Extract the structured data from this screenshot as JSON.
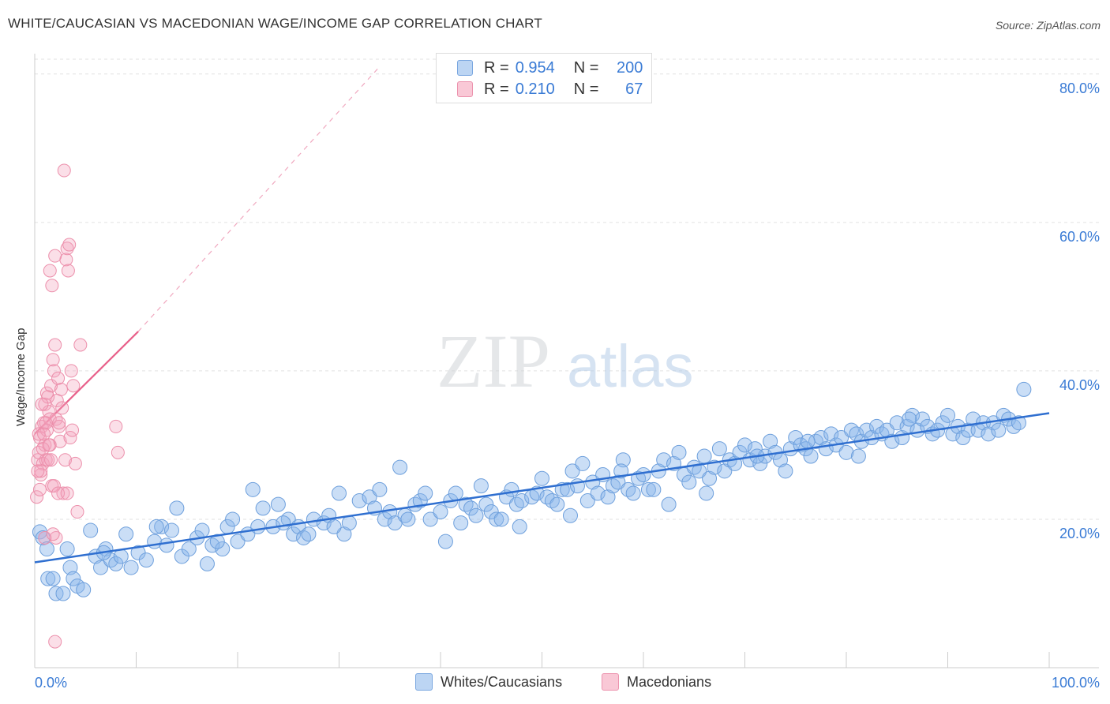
{
  "title": "WHITE/CAUCASIAN VS MACEDONIAN WAGE/INCOME GAP CORRELATION CHART",
  "source": "Source: ZipAtlas.com",
  "watermark": {
    "zip": "ZIP",
    "atlas": "atlas"
  },
  "legend_top": {
    "rows": [
      {
        "r_label": "R =",
        "r_value": "0.954",
        "n_label": "N =",
        "n_value": "200"
      },
      {
        "r_label": "R =",
        "r_value": "0.210",
        "n_label": "N =",
        "n_value": "67"
      }
    ]
  },
  "chart_data": {
    "type": "scatter",
    "title": "WHITE/CAUCASIAN VS MACEDONIAN WAGE/INCOME GAP CORRELATION CHART",
    "xlabel": "",
    "ylabel": "Wage/Income Gap",
    "xlim": [
      0,
      100
    ],
    "ylim": [
      0,
      82
    ],
    "x_tick_labels": [
      "0.0%",
      "100.0%"
    ],
    "y_tick_labels": [
      "20.0%",
      "40.0%",
      "60.0%",
      "80.0%"
    ],
    "y_ticks": [
      20,
      40,
      60,
      80
    ],
    "grid": true,
    "legend_position": "bottom",
    "colors": {
      "blue": "#8ab6ea",
      "blue_line": "#2f6fd0",
      "pink": "#f4a3bd",
      "pink_line": "#e8608a",
      "tick_text": "#3a7bd5"
    },
    "series": [
      {
        "name": "Whites/Caucasians",
        "R": 0.954,
        "N": 200,
        "trend": {
          "x": [
            0,
            100
          ],
          "y": [
            14.2,
            34.3
          ]
        },
        "points": [
          [
            0.5,
            18.3
          ],
          [
            0.8,
            17.5
          ],
          [
            1.3,
            12.0
          ],
          [
            1.2,
            16.0
          ],
          [
            1.8,
            12.0
          ],
          [
            2.1,
            10.0
          ],
          [
            2.8,
            10.0
          ],
          [
            3.5,
            13.5
          ],
          [
            3.8,
            12.0
          ],
          [
            4.2,
            11.0
          ],
          [
            4.8,
            10.5
          ],
          [
            5.5,
            18.5
          ],
          [
            6.0,
            15.0
          ],
          [
            6.5,
            13.5
          ],
          [
            7.0,
            16.0
          ],
          [
            7.5,
            14.5
          ],
          [
            8.0,
            14.0
          ],
          [
            8.5,
            15.0
          ],
          [
            9.0,
            18.0
          ],
          [
            9.5,
            13.5
          ],
          [
            10.2,
            15.5
          ],
          [
            11.0,
            14.5
          ],
          [
            11.8,
            17.0
          ],
          [
            12.5,
            19.0
          ],
          [
            13.0,
            16.5
          ],
          [
            13.5,
            18.5
          ],
          [
            14.0,
            21.5
          ],
          [
            14.5,
            15.0
          ],
          [
            15.2,
            16.0
          ],
          [
            16.0,
            17.5
          ],
          [
            16.5,
            18.5
          ],
          [
            17.0,
            14.0
          ],
          [
            17.5,
            16.5
          ],
          [
            18.5,
            16.0
          ],
          [
            19.0,
            19.0
          ],
          [
            19.5,
            20.0
          ],
          [
            20.0,
            17.0
          ],
          [
            21.0,
            18.0
          ],
          [
            21.5,
            24.0
          ],
          [
            22.0,
            19.0
          ],
          [
            22.5,
            21.5
          ],
          [
            23.5,
            19.0
          ],
          [
            24.0,
            22.0
          ],
          [
            25.0,
            20.0
          ],
          [
            25.5,
            18.0
          ],
          [
            26.0,
            19.0
          ],
          [
            26.5,
            17.5
          ],
          [
            27.0,
            18.0
          ],
          [
            27.5,
            20.0
          ],
          [
            28.5,
            19.5
          ],
          [
            29.0,
            20.5
          ],
          [
            30.0,
            23.5
          ],
          [
            30.5,
            18.0
          ],
          [
            31.0,
            19.5
          ],
          [
            32.0,
            22.5
          ],
          [
            33.0,
            23.0
          ],
          [
            33.5,
            21.5
          ],
          [
            34.0,
            24.0
          ],
          [
            34.5,
            20.0
          ],
          [
            35.0,
            21.0
          ],
          [
            35.5,
            19.5
          ],
          [
            36.0,
            27.0
          ],
          [
            36.5,
            20.5
          ],
          [
            37.5,
            22.0
          ],
          [
            38.0,
            22.5
          ],
          [
            38.5,
            23.5
          ],
          [
            39.0,
            20.0
          ],
          [
            40.0,
            21.0
          ],
          [
            41.0,
            22.5
          ],
          [
            41.5,
            23.5
          ],
          [
            42.0,
            19.5
          ],
          [
            42.5,
            22.0
          ],
          [
            43.0,
            21.5
          ],
          [
            44.0,
            24.5
          ],
          [
            44.5,
            22.0
          ],
          [
            45.0,
            21.0
          ],
          [
            45.5,
            20.0
          ],
          [
            46.0,
            20.0
          ],
          [
            46.5,
            23.0
          ],
          [
            47.0,
            24.0
          ],
          [
            47.5,
            22.0
          ],
          [
            48.0,
            22.5
          ],
          [
            49.0,
            23.0
          ],
          [
            49.5,
            23.5
          ],
          [
            50.0,
            25.5
          ],
          [
            50.5,
            23.0
          ],
          [
            51.0,
            22.5
          ],
          [
            51.5,
            22.0
          ],
          [
            52.0,
            24.0
          ],
          [
            52.5,
            24.0
          ],
          [
            53.0,
            26.5
          ],
          [
            53.5,
            24.5
          ],
          [
            54.0,
            27.5
          ],
          [
            54.5,
            22.5
          ],
          [
            55.0,
            25.0
          ],
          [
            55.5,
            23.5
          ],
          [
            56.0,
            26.0
          ],
          [
            56.5,
            23.0
          ],
          [
            57.0,
            24.5
          ],
          [
            57.5,
            25.0
          ],
          [
            58.0,
            28.0
          ],
          [
            58.5,
            24.0
          ],
          [
            59.0,
            23.5
          ],
          [
            59.5,
            25.5
          ],
          [
            60.0,
            26.0
          ],
          [
            60.5,
            24.0
          ],
          [
            61.5,
            26.5
          ],
          [
            62.0,
            28.0
          ],
          [
            62.5,
            22.0
          ],
          [
            63.0,
            27.5
          ],
          [
            63.5,
            29.0
          ],
          [
            64.0,
            26.0
          ],
          [
            64.5,
            25.0
          ],
          [
            65.0,
            27.0
          ],
          [
            65.5,
            26.5
          ],
          [
            66.0,
            28.5
          ],
          [
            66.5,
            25.5
          ],
          [
            67.0,
            27.0
          ],
          [
            67.5,
            29.5
          ],
          [
            68.0,
            26.5
          ],
          [
            68.5,
            28.0
          ],
          [
            69.0,
            27.5
          ],
          [
            69.5,
            29.0
          ],
          [
            70.0,
            30.0
          ],
          [
            70.5,
            28.0
          ],
          [
            71.0,
            29.5
          ],
          [
            71.5,
            27.5
          ],
          [
            72.0,
            28.5
          ],
          [
            72.5,
            30.5
          ],
          [
            73.0,
            29.0
          ],
          [
            73.5,
            28.0
          ],
          [
            74.0,
            26.5
          ],
          [
            74.5,
            29.5
          ],
          [
            75.0,
            31.0
          ],
          [
            75.5,
            30.0
          ],
          [
            76.0,
            29.5
          ],
          [
            76.5,
            28.5
          ],
          [
            77.0,
            30.5
          ],
          [
            77.5,
            31.0
          ],
          [
            78.0,
            29.5
          ],
          [
            78.5,
            31.5
          ],
          [
            79.0,
            30.0
          ],
          [
            79.5,
            31.0
          ],
          [
            80.0,
            29.0
          ],
          [
            80.5,
            32.0
          ],
          [
            81.0,
            31.5
          ],
          [
            81.5,
            30.5
          ],
          [
            82.0,
            32.0
          ],
          [
            82.5,
            31.0
          ],
          [
            83.0,
            32.5
          ],
          [
            83.5,
            31.5
          ],
          [
            84.0,
            32.0
          ],
          [
            84.5,
            30.5
          ],
          [
            85.0,
            33.0
          ],
          [
            85.5,
            31.0
          ],
          [
            86.0,
            32.5
          ],
          [
            86.5,
            34.0
          ],
          [
            87.0,
            32.0
          ],
          [
            87.5,
            33.5
          ],
          [
            88.0,
            32.5
          ],
          [
            88.5,
            31.5
          ],
          [
            89.0,
            32.0
          ],
          [
            89.5,
            33.0
          ],
          [
            90.0,
            34.0
          ],
          [
            90.5,
            31.5
          ],
          [
            91.0,
            32.5
          ],
          [
            91.5,
            31.0
          ],
          [
            92.0,
            32.0
          ],
          [
            92.5,
            33.5
          ],
          [
            93.0,
            32.0
          ],
          [
            93.5,
            33.0
          ],
          [
            94.0,
            31.5
          ],
          [
            94.5,
            33.0
          ],
          [
            95.0,
            32.0
          ],
          [
            95.5,
            34.0
          ],
          [
            96.0,
            33.5
          ],
          [
            96.5,
            32.5
          ],
          [
            97.0,
            33.0
          ],
          [
            97.5,
            37.5
          ],
          [
            3.2,
            16.0
          ],
          [
            6.8,
            15.5
          ],
          [
            12.0,
            19.0
          ],
          [
            18.0,
            17.0
          ],
          [
            24.5,
            19.5
          ],
          [
            29.5,
            19.0
          ],
          [
            36.8,
            20.0
          ],
          [
            40.5,
            17.0
          ],
          [
            43.5,
            20.5
          ],
          [
            47.8,
            19.0
          ],
          [
            52.8,
            20.5
          ],
          [
            57.8,
            26.5
          ],
          [
            61.0,
            24.0
          ],
          [
            66.2,
            23.5
          ],
          [
            71.2,
            28.5
          ],
          [
            76.2,
            30.5
          ],
          [
            81.2,
            28.5
          ],
          [
            86.2,
            33.5
          ]
        ]
      },
      {
        "name": "Macedonians",
        "R": 0.21,
        "N": 67,
        "trend": {
          "x": [
            0,
            10.2
          ],
          "y": [
            31.5,
            45.3
          ]
        },
        "trend_extension": {
          "x": [
            10.2,
            34.0
          ],
          "y": [
            45.3,
            81.0
          ]
        },
        "points": [
          [
            0.2,
            23.0
          ],
          [
            0.3,
            28.0
          ],
          [
            0.4,
            29.0
          ],
          [
            0.5,
            31.0
          ],
          [
            0.6,
            26.0
          ],
          [
            0.7,
            32.5
          ],
          [
            0.8,
            27.5
          ],
          [
            0.9,
            33.0
          ],
          [
            1.0,
            35.5
          ],
          [
            1.0,
            30.0
          ],
          [
            1.1,
            28.0
          ],
          [
            1.2,
            37.0
          ],
          [
            1.2,
            32.0
          ],
          [
            1.3,
            36.5
          ],
          [
            1.4,
            34.5
          ],
          [
            1.5,
            33.5
          ],
          [
            1.5,
            30.0
          ],
          [
            1.6,
            38.0
          ],
          [
            1.7,
            24.5
          ],
          [
            1.8,
            41.5
          ],
          [
            1.9,
            40.0
          ],
          [
            2.0,
            43.5
          ],
          [
            2.1,
            33.5
          ],
          [
            2.2,
            36.0
          ],
          [
            2.3,
            39.0
          ],
          [
            2.4,
            32.5
          ],
          [
            2.5,
            30.5
          ],
          [
            2.6,
            37.5
          ],
          [
            2.7,
            35.0
          ],
          [
            2.8,
            23.5
          ],
          [
            3.0,
            28.0
          ],
          [
            3.1,
            55.0
          ],
          [
            3.2,
            56.5
          ],
          [
            3.3,
            53.5
          ],
          [
            3.4,
            57.0
          ],
          [
            3.5,
            31.0
          ],
          [
            3.6,
            40.0
          ],
          [
            3.7,
            32.0
          ],
          [
            3.8,
            38.0
          ],
          [
            4.0,
            27.5
          ],
          [
            4.2,
            21.0
          ],
          [
            4.5,
            43.5
          ],
          [
            1.5,
            53.5
          ],
          [
            1.7,
            51.5
          ],
          [
            2.0,
            55.5
          ],
          [
            2.9,
            67.0
          ],
          [
            2.1,
            17.5
          ],
          [
            1.0,
            17.5
          ],
          [
            0.6,
            26.5
          ],
          [
            0.5,
            24.0
          ],
          [
            0.8,
            29.5
          ],
          [
            1.3,
            28.0
          ],
          [
            1.6,
            28.0
          ],
          [
            1.9,
            24.5
          ],
          [
            2.4,
            33.0
          ],
          [
            0.4,
            31.5
          ],
          [
            0.9,
            31.5
          ],
          [
            1.1,
            33.0
          ],
          [
            0.7,
            35.5
          ],
          [
            1.4,
            30.0
          ],
          [
            2.3,
            23.5
          ],
          [
            3.2,
            23.5
          ],
          [
            8.0,
            32.5
          ],
          [
            8.2,
            29.0
          ],
          [
            2.0,
            3.5
          ],
          [
            1.8,
            18.0
          ],
          [
            0.3,
            26.5
          ]
        ]
      }
    ]
  },
  "legend_bottom": {
    "items": [
      "Whites/Caucasians",
      "Macedonians"
    ]
  }
}
